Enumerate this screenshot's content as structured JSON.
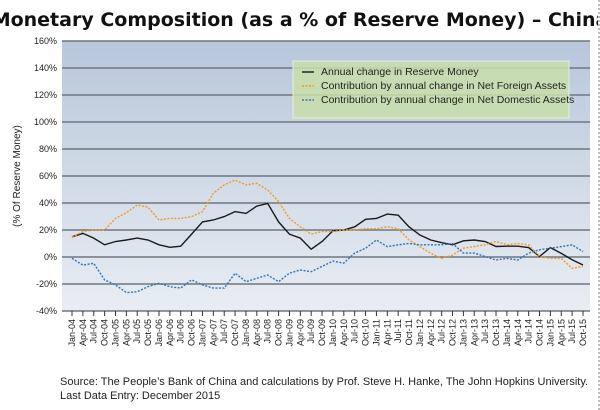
{
  "chart_data": {
    "type": "line",
    "title": "Monetary Composition (as a % of Reserve Money) – China",
    "ylabel": "(% Of Reserve Money)",
    "xlabel": "",
    "ylim": [
      -40,
      160
    ],
    "yticks": [
      "-40%",
      "-20%",
      "0%",
      "20%",
      "40%",
      "60%",
      "80%",
      "100%",
      "120%",
      "140%",
      "160%"
    ],
    "yticks_values": [
      -40,
      -20,
      0,
      20,
      40,
      60,
      80,
      100,
      120,
      140,
      160
    ],
    "grid": true,
    "legend_placement": "top-right",
    "categories": [
      "Jan-04",
      "Apr-04",
      "Jul-04",
      "Oct-04",
      "Jan-05",
      "Apr-05",
      "Jul-05",
      "Oct-05",
      "Jan-06",
      "Apr-06",
      "Jul-06",
      "Oct-06",
      "Jan-07",
      "Apr-07",
      "Jul-07",
      "Oct-07",
      "Jan-08",
      "Apr-08",
      "Jul-08",
      "Oct-08",
      "Jan-09",
      "Apr-09",
      "Jul-09",
      "Oct-09",
      "Jan-10",
      "Apr-10",
      "Jul-10",
      "Oct-10",
      "Jan-11",
      "Apr-11",
      "Jul-11",
      "Oct-11",
      "Jan-12",
      "Apr-12",
      "Jul-12",
      "Oct-12",
      "Jan-13",
      "Apr-13",
      "Jul-13",
      "Oct-13",
      "Jan-14",
      "Apr-14",
      "Jul-14",
      "Oct-14",
      "Jan-15",
      "Apr-15",
      "Jul-15",
      "Oct-15"
    ],
    "series": [
      {
        "name": "Annual change in Reserve Money",
        "color": "#1a1a1a",
        "style": "solid",
        "values": [
          15,
          17.5,
          14,
          9,
          11.5,
          12.6,
          14,
          12.6,
          9,
          7.2,
          8,
          17,
          26,
          27.4,
          29.9,
          33.6,
          32.3,
          37.7,
          39.7,
          26,
          17,
          14,
          5.8,
          11.5,
          19.4,
          19.9,
          22.4,
          27.9,
          28.6,
          31.8,
          31,
          22.4,
          16.3,
          12.6,
          10.6,
          9,
          12,
          12.6,
          11.5,
          7.8,
          8,
          8,
          7,
          0.4,
          7,
          2.7,
          -2,
          -5.9
        ]
      },
      {
        "name": "Contribution by annual change in Net Foreign Assets",
        "color": "#f39a1e",
        "style": "dotted",
        "values": [
          14.6,
          18.8,
          20,
          20,
          28.6,
          32.8,
          38.5,
          37,
          27.4,
          28.6,
          28.6,
          29.9,
          33.6,
          47.2,
          53.4,
          57,
          53.4,
          54.6,
          49.6,
          41,
          28.6,
          22.4,
          17,
          18.8,
          18.8,
          20,
          20,
          21,
          21,
          22.4,
          21,
          12.6,
          7.7,
          2.7,
          -1,
          1.5,
          6.5,
          7.8,
          9,
          11.5,
          9,
          10,
          9,
          0.4,
          -1,
          -1,
          -8.4,
          -7
        ]
      },
      {
        "name": "Contribution by annual change in Net Domestic Assets",
        "color": "#2e75b6",
        "style": "dotted",
        "values": [
          -1,
          -6,
          -4.7,
          -17,
          -20.7,
          -26.4,
          -25.7,
          -21.9,
          -19.5,
          -22,
          -23,
          -17,
          -20.7,
          -23,
          -23,
          -12,
          -18.3,
          -15.8,
          -13.3,
          -18.3,
          -12,
          -9.6,
          -10.9,
          -7,
          -3,
          -4.5,
          2.9,
          6.5,
          12.6,
          7.7,
          9,
          10,
          9,
          9,
          9,
          10,
          2.9,
          2.9,
          0.4,
          -2.2,
          -1,
          -2.2,
          2.9,
          5.3,
          6.5,
          7.7,
          9,
          4
        ]
      }
    ]
  },
  "source": "Source: The People’s Bank of China and calculations by Prof. Steve H. Hanke, The John Hopkins University.",
  "last_entry": "Last Data Entry: December 2015",
  "colors": {
    "plot_top": "#b7c7da",
    "plot_bottom": "#e9edf3",
    "legend_bg": "#c9deaa"
  }
}
